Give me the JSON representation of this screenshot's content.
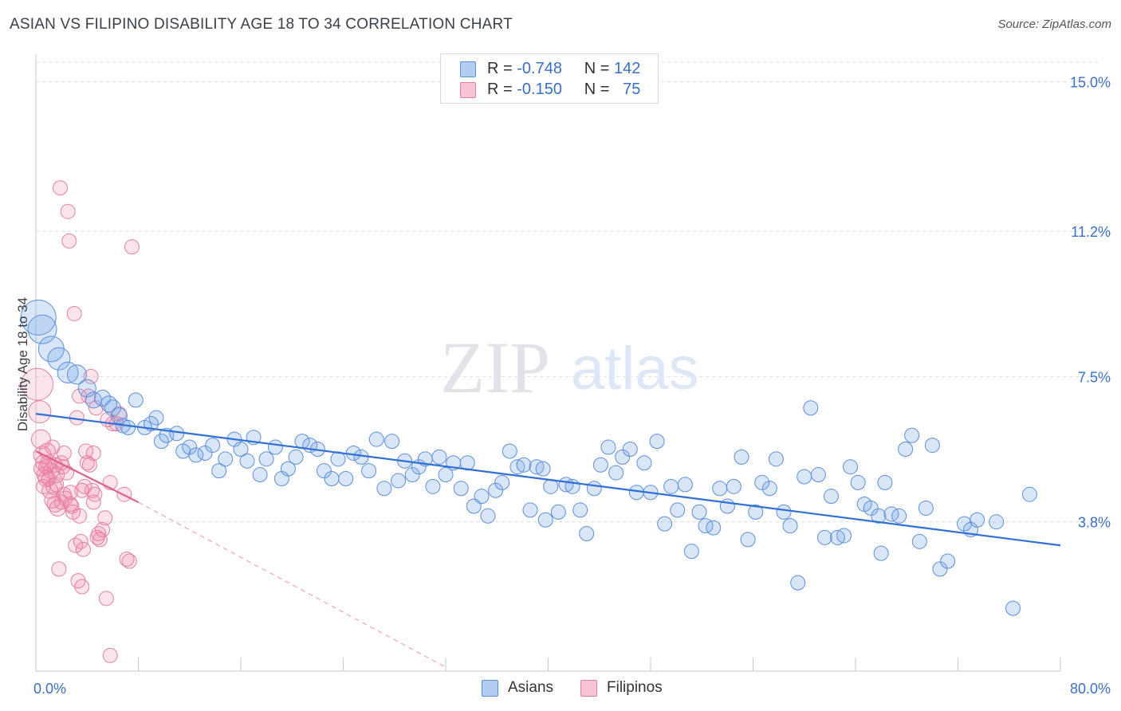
{
  "title": "ASIAN VS FILIPINO DISABILITY AGE 18 TO 34 CORRELATION CHART",
  "source": "Source: ZipAtlas.com",
  "watermark": {
    "zip": "ZIP",
    "atlas": "atlas"
  },
  "legend": {
    "r_label": "R =",
    "n_label": "N =",
    "rows": [
      {
        "r": "-0.748",
        "n": "142",
        "fill": "#b3cdf2",
        "stroke": "#5b8fdc"
      },
      {
        "r": "-0.150",
        "n": "75",
        "fill": "#f8c3d4",
        "stroke": "#e57fa2"
      }
    ]
  },
  "bottom_legend": [
    "Asians",
    "Filipinos"
  ],
  "colors": {
    "asian_fill": "rgba(120,165,230,0.28)",
    "asian_stroke": "#5b8fdc",
    "asian_line": "#2f6fd6",
    "filipino_fill": "rgba(240,130,165,0.22)",
    "filipino_stroke": "#e57fa2",
    "filipino_line": "#e0608a",
    "grid": "#d9dce2",
    "tick_text": "#3a6fc8"
  },
  "chart_data": {
    "type": "scatter",
    "title": "ASIAN VS FILIPINO DISABILITY AGE 18 TO 34 CORRELATION CHART",
    "xlabel": "",
    "ylabel": "Disability Age 18 to 34",
    "xlim": [
      0,
      80
    ],
    "ylim": [
      0,
      15.5
    ],
    "x_tick_labels": [
      "0.0%",
      "80.0%"
    ],
    "y_ticks": [
      3.8,
      7.5,
      11.2,
      15.0
    ],
    "y_tick_labels": [
      "3.8%",
      "7.5%",
      "11.2%",
      "15.0%"
    ],
    "grid": true,
    "legend_position": "top-center",
    "series": [
      {
        "name": "Asians",
        "r": -0.748,
        "n": 142,
        "trend": {
          "x": [
            0,
            80
          ],
          "y": [
            6.55,
            3.2
          ]
        },
        "points": [
          [
            0.2,
            9.0,
            22
          ],
          [
            0.5,
            8.7,
            18
          ],
          [
            1.2,
            8.2,
            16
          ],
          [
            1.8,
            7.95,
            14
          ],
          [
            2.5,
            7.6,
            13
          ],
          [
            3.2,
            7.55,
            12
          ],
          [
            4.0,
            7.2,
            11
          ],
          [
            4.5,
            6.9,
            10
          ],
          [
            5.2,
            6.95,
            10
          ],
          [
            5.7,
            6.8,
            10
          ],
          [
            6.0,
            6.7,
            10
          ],
          [
            6.5,
            6.5,
            10
          ],
          [
            6.8,
            6.25,
            9
          ],
          [
            7.2,
            6.2,
            9
          ],
          [
            7.8,
            6.9,
            9
          ],
          [
            8.5,
            6.2,
            9
          ],
          [
            9.0,
            6.3,
            9
          ],
          [
            9.4,
            6.45,
            9
          ],
          [
            9.8,
            5.85,
            9
          ],
          [
            10.2,
            6.0,
            9
          ],
          [
            11.0,
            6.05,
            9
          ],
          [
            11.5,
            5.6,
            9
          ],
          [
            12.0,
            5.7,
            9
          ],
          [
            12.5,
            5.5,
            9
          ],
          [
            13.2,
            5.55,
            9
          ],
          [
            13.8,
            5.75,
            9
          ],
          [
            14.3,
            5.1,
            9
          ],
          [
            14.8,
            5.4,
            9
          ],
          [
            15.5,
            5.9,
            9
          ],
          [
            16.0,
            5.65,
            9
          ],
          [
            16.5,
            5.35,
            9
          ],
          [
            17.0,
            5.95,
            9
          ],
          [
            17.5,
            5.0,
            9
          ],
          [
            18.0,
            5.4,
            9
          ],
          [
            18.7,
            5.7,
            9
          ],
          [
            19.2,
            4.9,
            9
          ],
          [
            19.7,
            5.15,
            9
          ],
          [
            20.3,
            5.45,
            9
          ],
          [
            20.8,
            5.85,
            9
          ],
          [
            21.4,
            5.75,
            9
          ],
          [
            22.0,
            5.65,
            9
          ],
          [
            22.5,
            5.1,
            9
          ],
          [
            23.1,
            4.9,
            9
          ],
          [
            23.6,
            5.4,
            9
          ],
          [
            24.2,
            4.9,
            9
          ],
          [
            24.8,
            5.55,
            9
          ],
          [
            25.4,
            5.45,
            9
          ],
          [
            26.0,
            5.1,
            9
          ],
          [
            26.6,
            5.9,
            9
          ],
          [
            27.2,
            4.65,
            9
          ],
          [
            27.8,
            5.85,
            9
          ],
          [
            28.3,
            4.85,
            9
          ],
          [
            28.8,
            5.35,
            9
          ],
          [
            29.4,
            5.0,
            9
          ],
          [
            29.9,
            5.2,
            9
          ],
          [
            30.4,
            5.4,
            9
          ],
          [
            31.0,
            4.7,
            9
          ],
          [
            31.5,
            5.45,
            9
          ],
          [
            32.0,
            5.0,
            9
          ],
          [
            32.6,
            5.3,
            9
          ],
          [
            33.2,
            4.65,
            9
          ],
          [
            33.7,
            5.3,
            9
          ],
          [
            34.2,
            4.2,
            9
          ],
          [
            34.8,
            4.45,
            9
          ],
          [
            35.3,
            3.95,
            9
          ],
          [
            35.9,
            4.6,
            9
          ],
          [
            36.4,
            4.8,
            9
          ],
          [
            37.0,
            5.6,
            9
          ],
          [
            37.6,
            5.2,
            9
          ],
          [
            38.1,
            5.25,
            9
          ],
          [
            38.6,
            4.1,
            9
          ],
          [
            39.1,
            5.2,
            9
          ],
          [
            39.6,
            5.15,
            9
          ],
          [
            40.2,
            4.7,
            9
          ],
          [
            40.8,
            4.05,
            9
          ],
          [
            41.4,
            4.75,
            9
          ],
          [
            41.9,
            4.7,
            9
          ],
          [
            42.5,
            4.1,
            9
          ],
          [
            43.0,
            3.5,
            9
          ],
          [
            43.6,
            4.65,
            9
          ],
          [
            44.1,
            5.25,
            9
          ],
          [
            44.7,
            5.7,
            9
          ],
          [
            45.3,
            5.05,
            9
          ],
          [
            45.8,
            5.45,
            9
          ],
          [
            46.4,
            5.65,
            9
          ],
          [
            46.9,
            4.55,
            9
          ],
          [
            47.5,
            5.3,
            9
          ],
          [
            48.0,
            4.55,
            9
          ],
          [
            48.5,
            5.85,
            9
          ],
          [
            49.1,
            3.75,
            9
          ],
          [
            49.6,
            4.7,
            9
          ],
          [
            50.1,
            4.1,
            9
          ],
          [
            50.7,
            4.75,
            9
          ],
          [
            51.2,
            3.05,
            9
          ],
          [
            51.8,
            4.05,
            9
          ],
          [
            52.3,
            3.7,
            9
          ],
          [
            52.9,
            3.65,
            9
          ],
          [
            53.4,
            4.65,
            9
          ],
          [
            54.0,
            4.2,
            9
          ],
          [
            54.5,
            4.7,
            9
          ],
          [
            55.1,
            5.45,
            9
          ],
          [
            55.6,
            3.35,
            9
          ],
          [
            56.2,
            4.05,
            9
          ],
          [
            56.7,
            4.8,
            9
          ],
          [
            57.3,
            4.65,
            9
          ],
          [
            57.8,
            5.4,
            9
          ],
          [
            58.4,
            4.05,
            9
          ],
          [
            58.9,
            3.7,
            9
          ],
          [
            59.5,
            2.25,
            9
          ],
          [
            60.0,
            4.95,
            9
          ],
          [
            60.5,
            6.7,
            9
          ],
          [
            61.1,
            5.0,
            9
          ],
          [
            61.6,
            3.4,
            9
          ],
          [
            62.1,
            4.45,
            9
          ],
          [
            62.6,
            3.4,
            9
          ],
          [
            63.1,
            3.45,
            9
          ],
          [
            63.6,
            5.2,
            9
          ],
          [
            64.2,
            4.8,
            9
          ],
          [
            64.7,
            4.25,
            9
          ],
          [
            65.2,
            4.15,
            9
          ],
          [
            65.8,
            3.95,
            9
          ],
          [
            66.3,
            4.8,
            9
          ],
          [
            66.8,
            4.0,
            9
          ],
          [
            67.4,
            3.95,
            9
          ],
          [
            67.9,
            5.65,
            9
          ],
          [
            68.4,
            6.0,
            9
          ],
          [
            69.0,
            3.3,
            9
          ],
          [
            69.5,
            4.15,
            9
          ],
          [
            70.0,
            5.75,
            9
          ],
          [
            70.6,
            2.6,
            9
          ],
          [
            71.2,
            2.8,
            9
          ],
          [
            72.5,
            3.75,
            9
          ],
          [
            73.0,
            3.6,
            9
          ],
          [
            73.5,
            3.85,
            9
          ],
          [
            75.0,
            3.8,
            9
          ],
          [
            76.3,
            1.6,
            9
          ],
          [
            77.6,
            4.5,
            9
          ],
          [
            66.0,
            3.0,
            9
          ],
          [
            39.8,
            3.85,
            9
          ]
        ]
      },
      {
        "name": "Filipinos",
        "r": -0.15,
        "n": 75,
        "trend": {
          "x": [
            0,
            8.0
          ],
          "y": [
            5.6,
            4.3
          ]
        },
        "trend_ext": {
          "x": [
            8.0,
            32.0
          ],
          "y": [
            4.3,
            0.1
          ]
        },
        "points": [
          [
            0.1,
            7.3,
            20
          ],
          [
            0.3,
            6.6,
            14
          ],
          [
            0.4,
            5.9,
            12
          ],
          [
            0.5,
            5.5,
            11
          ],
          [
            0.6,
            5.3,
            10
          ],
          [
            0.7,
            5.0,
            10
          ],
          [
            0.8,
            4.9,
            10
          ],
          [
            0.9,
            5.6,
            10
          ],
          [
            1.0,
            5.3,
            10
          ],
          [
            1.1,
            4.6,
            10
          ],
          [
            1.2,
            5.1,
            10
          ],
          [
            1.3,
            4.35,
            10
          ],
          [
            1.4,
            4.7,
            10
          ],
          [
            1.5,
            4.25,
            10
          ],
          [
            1.6,
            5.0,
            10
          ],
          [
            1.7,
            4.15,
            10
          ],
          [
            1.8,
            2.6,
            9
          ],
          [
            1.9,
            12.3,
            9
          ],
          [
            2.0,
            5.3,
            9
          ],
          [
            2.1,
            5.2,
            9
          ],
          [
            2.2,
            4.5,
            9
          ],
          [
            2.3,
            4.4,
            9
          ],
          [
            2.4,
            5.05,
            9
          ],
          [
            2.5,
            11.7,
            9
          ],
          [
            2.6,
            10.95,
            9
          ],
          [
            2.7,
            4.25,
            9
          ],
          [
            2.8,
            4.2,
            9
          ],
          [
            2.9,
            4.05,
            9
          ],
          [
            3.0,
            9.1,
            9
          ],
          [
            3.1,
            3.2,
            9
          ],
          [
            3.2,
            6.45,
            9
          ],
          [
            3.3,
            2.3,
            9
          ],
          [
            3.4,
            3.95,
            9
          ],
          [
            3.5,
            3.3,
            9
          ],
          [
            3.6,
            2.15,
            9
          ],
          [
            3.7,
            3.1,
            9
          ],
          [
            3.8,
            4.7,
            9
          ],
          [
            3.9,
            5.6,
            9
          ],
          [
            4.0,
            5.3,
            9
          ],
          [
            4.1,
            7.0,
            9
          ],
          [
            4.2,
            5.25,
            9
          ],
          [
            4.3,
            7.5,
            9
          ],
          [
            4.4,
            4.6,
            9
          ],
          [
            4.5,
            4.3,
            9
          ],
          [
            4.6,
            4.5,
            9
          ],
          [
            4.7,
            6.7,
            9
          ],
          [
            4.8,
            3.4,
            9
          ],
          [
            4.9,
            3.5,
            9
          ],
          [
            5.0,
            3.35,
            9
          ],
          [
            5.2,
            3.6,
            9
          ],
          [
            5.4,
            3.9,
            9
          ],
          [
            5.6,
            6.4,
            9
          ],
          [
            5.8,
            4.8,
            9
          ],
          [
            6.0,
            6.3,
            9
          ],
          [
            6.3,
            6.3,
            9
          ],
          [
            6.5,
            6.55,
            9
          ],
          [
            6.9,
            4.5,
            9
          ],
          [
            7.1,
            2.85,
            9
          ],
          [
            7.3,
            2.8,
            9
          ],
          [
            7.5,
            10.8,
            9
          ],
          [
            5.5,
            1.85,
            9
          ],
          [
            5.8,
            0.4,
            9
          ],
          [
            2.0,
            4.3,
            9
          ],
          [
            0.6,
            4.7,
            9
          ],
          [
            1.5,
            5.25,
            9
          ],
          [
            2.7,
            4.55,
            9
          ],
          [
            3.4,
            7.0,
            9
          ],
          [
            1.0,
            4.9,
            9
          ],
          [
            0.8,
            5.2,
            9
          ],
          [
            1.6,
            4.75,
            9
          ],
          [
            2.2,
            5.55,
            9
          ],
          [
            3.6,
            4.6,
            9
          ],
          [
            4.5,
            5.55,
            9
          ],
          [
            1.3,
            5.7,
            9
          ],
          [
            0.4,
            5.15,
            9
          ]
        ]
      }
    ]
  }
}
